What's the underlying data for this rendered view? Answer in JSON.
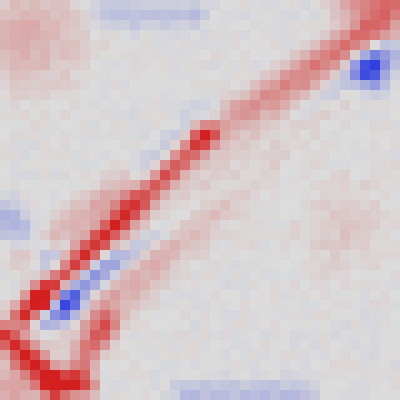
{
  "chart_data": {
    "type": "heatmap",
    "rows": 40,
    "cols": 40,
    "value_range": [
      -1,
      1
    ],
    "grid": false,
    "legend": "none",
    "colormap": {
      "negative": "#2f3fe0",
      "neutral": "#dcdcdc",
      "positive": "#d41f1f"
    },
    "features": [
      {
        "kind": "band",
        "from": [
          1,
          38
        ],
        "to": [
          39,
          1
        ],
        "value": 0.32,
        "width": 1.8
      },
      {
        "kind": "band",
        "from": [
          2,
          31
        ],
        "to": [
          20,
          13
        ],
        "value": 0.95,
        "width": 0.9
      },
      {
        "kind": "band",
        "from": [
          20,
          13
        ],
        "to": [
          37,
          2
        ],
        "value": 0.35,
        "width": 1.0
      },
      {
        "kind": "band",
        "from": [
          4,
          31
        ],
        "to": [
          38,
          5
        ],
        "value": -0.6,
        "width": 1.1
      },
      {
        "kind": "band",
        "from": [
          12,
          24
        ],
        "to": [
          38,
          6
        ],
        "value": 0.35,
        "width": 0.9
      },
      {
        "kind": "band",
        "from": [
          0,
          33
        ],
        "to": [
          5,
          38
        ],
        "value": 0.85,
        "width": 0.9
      },
      {
        "kind": "band",
        "from": [
          10,
          32
        ],
        "to": [
          7,
          37
        ],
        "value": 0.6,
        "width": 0.9
      },
      {
        "kind": "band",
        "from": [
          5,
          38
        ],
        "to": [
          8,
          38
        ],
        "value": 0.7,
        "width": 0.8
      },
      {
        "kind": "band",
        "from": [
          14,
          18
        ],
        "to": [
          20,
          12
        ],
        "value": -0.3,
        "width": 1.2
      },
      {
        "kind": "band",
        "from": [
          2,
          25
        ],
        "to": [
          12,
          18
        ],
        "value": 0.25,
        "width": 1.0
      },
      {
        "kind": "band",
        "from": [
          0,
          21
        ],
        "to": [
          5,
          26
        ],
        "value": -0.25,
        "width": 1.2
      },
      {
        "kind": "band",
        "from": [
          18,
          39
        ],
        "to": [
          30,
          39
        ],
        "value": -0.2,
        "width": 1.0
      },
      {
        "kind": "band",
        "from": [
          10,
          1
        ],
        "to": [
          19,
          1
        ],
        "value": -0.18,
        "width": 1.0
      },
      {
        "kind": "band",
        "from": [
          34,
          0
        ],
        "to": [
          39,
          0
        ],
        "value": 0.3,
        "width": 1.0
      },
      {
        "kind": "blob",
        "center": [
          36.6,
          6.5
        ],
        "radius": 1.2,
        "value": -0.95
      },
      {
        "kind": "blob",
        "center": [
          2.5,
          3
        ],
        "radius": 3.5,
        "value": 0.25
      },
      {
        "kind": "blob",
        "center": [
          5.5,
          34.5
        ],
        "radius": 2.2,
        "value": -0.25
      },
      {
        "kind": "blob",
        "center": [
          4,
          29.5
        ],
        "radius": 1.0,
        "value": 1.0
      },
      {
        "kind": "blob",
        "center": [
          6,
          30
        ],
        "radius": 1.2,
        "value": -0.7
      },
      {
        "kind": "blob",
        "center": [
          34,
          22
        ],
        "radius": 3.0,
        "value": 0.12
      }
    ]
  }
}
